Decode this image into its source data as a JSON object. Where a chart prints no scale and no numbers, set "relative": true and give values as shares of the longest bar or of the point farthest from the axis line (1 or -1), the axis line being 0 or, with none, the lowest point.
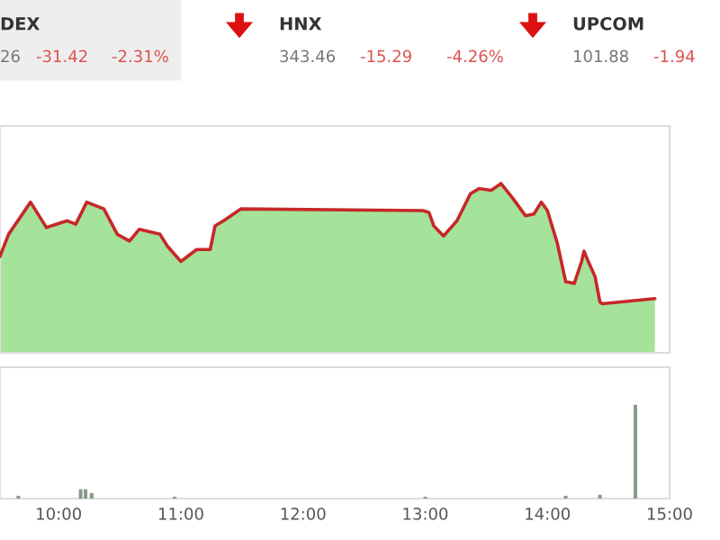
{
  "chart_data": [
    {
      "type": "other",
      "annotations": [
        "DEX",
        "26",
        "-31.42",
        "-2.31%",
        "HNX",
        "343.46",
        "-15.29",
        "-4.26%",
        "UPCOM",
        "101.88",
        "-1.94"
      ]
    },
    {
      "type": "area",
      "relative": true,
      "xlim": [
        9.52,
        15.0
      ],
      "tick_labels": false,
      "series": [
        {
          "color": "#a5e39a",
          "type": "area",
          "x": [
            9.52,
            9.59,
            9.77,
            9.9,
            10.07,
            10.14,
            10.23,
            10.37,
            10.48,
            10.58,
            10.66,
            10.83,
            10.89,
            11.0,
            11.13,
            11.24,
            11.28,
            11.35,
            11.49,
            12.98,
            13.03,
            13.07,
            13.15,
            13.26,
            13.37,
            13.44,
            13.54,
            13.62,
            13.72,
            13.82,
            13.89,
            13.95,
            14.0,
            14.08,
            14.15,
            14.22,
            14.28,
            14.3,
            14.34,
            14.39,
            14.43,
            14.45,
            14.88
          ],
          "values": [
            0.57,
            0.7,
            0.89,
            0.74,
            0.78,
            0.76,
            0.89,
            0.85,
            0.7,
            0.66,
            0.73,
            0.7,
            0.63,
            0.54,
            0.61,
            0.61,
            0.75,
            0.78,
            0.85,
            0.84,
            0.83,
            0.75,
            0.69,
            0.78,
            0.94,
            0.97,
            0.96,
            1.0,
            0.91,
            0.81,
            0.82,
            0.89,
            0.84,
            0.65,
            0.42,
            0.41,
            0.54,
            0.6,
            0.53,
            0.45,
            0.3,
            0.29,
            0.32
          ]
        },
        {
          "color": "#c62828",
          "type": "line",
          "x": [
            9.52,
            9.59,
            9.77,
            9.9,
            10.07,
            10.14,
            10.23,
            10.37,
            10.48,
            10.58,
            10.66,
            10.83,
            10.89,
            11.0,
            11.13,
            11.24,
            11.28,
            11.35,
            11.49,
            12.98,
            13.03,
            13.07,
            13.15,
            13.26,
            13.37,
            13.44,
            13.54,
            13.62,
            13.72,
            13.82,
            13.89,
            13.95,
            14.0,
            14.08,
            14.15,
            14.22,
            14.28,
            14.3,
            14.34,
            14.39,
            14.43,
            14.45,
            14.88
          ],
          "values": [
            0.57,
            0.7,
            0.89,
            0.74,
            0.78,
            0.76,
            0.89,
            0.85,
            0.7,
            0.66,
            0.73,
            0.7,
            0.63,
            0.54,
            0.61,
            0.61,
            0.75,
            0.78,
            0.85,
            0.84,
            0.83,
            0.75,
            0.69,
            0.78,
            0.94,
            0.97,
            0.96,
            1.0,
            0.91,
            0.81,
            0.82,
            0.89,
            0.84,
            0.65,
            0.42,
            0.41,
            0.54,
            0.6,
            0.53,
            0.45,
            0.3,
            0.29,
            0.32
          ]
        }
      ]
    },
    {
      "type": "bar",
      "relative": true,
      "xlim": [
        9.52,
        15.0
      ],
      "tick_labels": "x",
      "xticks": [
        {
          "value": 10,
          "label": "10:00"
        },
        {
          "value": 11,
          "label": "11:00"
        },
        {
          "value": 12,
          "label": "12:00"
        },
        {
          "value": 13,
          "label": "13:00"
        },
        {
          "value": 14,
          "label": "14:00"
        },
        {
          "value": 15,
          "label": "15:00"
        }
      ],
      "series": [
        {
          "color": "#8a9a8a",
          "x": [
            9.67,
            10.18,
            10.22,
            10.27,
            10.95,
            13.0,
            14.15,
            14.43,
            14.72
          ],
          "values": [
            0.03,
            0.1,
            0.1,
            0.06,
            0.02,
            0.02,
            0.03,
            0.04,
            1.0
          ]
        }
      ]
    }
  ]
}
